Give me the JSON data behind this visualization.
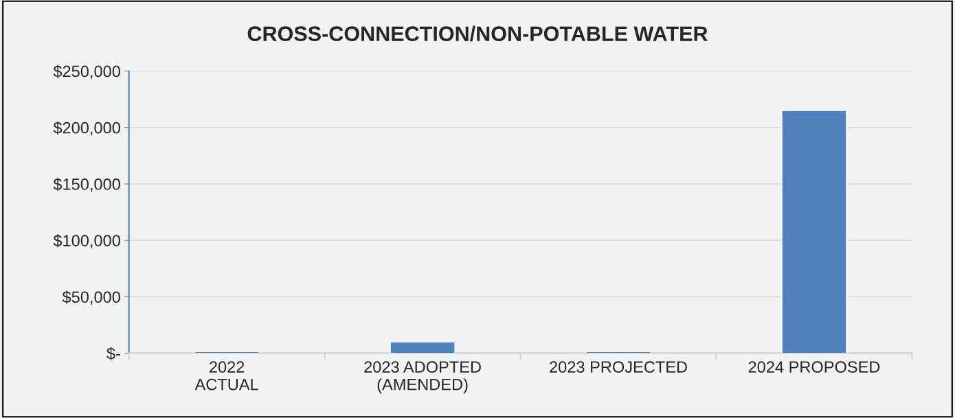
{
  "chart_data": {
    "type": "bar",
    "title": "CROSS-CONNECTION/NON-POTABLE WATER",
    "categories": [
      "2022\nACTUAL",
      "2023 ADOPTED\n(AMENDED)",
      "2023 PROJECTED",
      "2024 PROPOSED"
    ],
    "values": [
      1500,
      10000,
      1500,
      215000
    ],
    "color": "#4f81bd",
    "ylim": [
      0,
      250000
    ],
    "yticks": [
      {
        "value": 0,
        "label": "$-"
      },
      {
        "value": 50000,
        "label": "$50,000"
      },
      {
        "value": 100000,
        "label": "$100,000"
      },
      {
        "value": 150000,
        "label": "$150,000"
      },
      {
        "value": 200000,
        "label": "$200,000"
      },
      {
        "value": 250000,
        "label": "$250,000"
      }
    ],
    "grid": "y"
  }
}
